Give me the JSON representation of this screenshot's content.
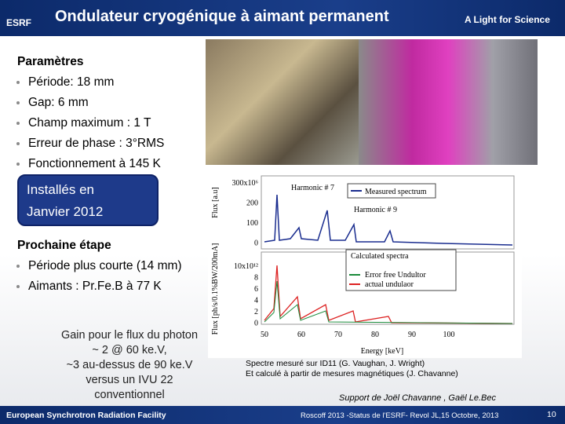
{
  "header": {
    "logo": "ESRF",
    "title": "Ondulateur cryogénique à aimant permanent",
    "tagline": "A Light for Science"
  },
  "params": {
    "heading": "Paramètres",
    "items": [
      "Période: 18 mm",
      "Gap: 6 mm",
      "Champ maximum : 1 T",
      "Erreur de phase : 3°RMS",
      "Fonctionnement à 145 K"
    ]
  },
  "installed": {
    "lines": [
      "Installés en",
      "Janvier  2012"
    ]
  },
  "next": {
    "heading": "Prochaine étape",
    "items": [
      "Période plus courte (14 mm)",
      "Aimants : Pr.Fe.B à 77 K"
    ]
  },
  "gain": {
    "lines": [
      "Gain pour le flux du photon",
      "~ 2 @ 60 ke.V,",
      "~3 au-dessus de 90 ke.V",
      "versus un IVU 22",
      "conventionnel"
    ]
  },
  "figure": {
    "top_ylabel": "Flux [a.u]",
    "top_yticks": [
      "300x10⁶",
      "200",
      "100",
      "0"
    ],
    "harmonic7": "Harmonic # 7",
    "harmonic9": "Harmonic # 9",
    "legend_top": "Measured spectrum",
    "bottom_ylabel": "Flux [ph/s/0.1%BW/200mA]",
    "bottom_yticks": [
      "10x10¹²",
      "8",
      "6",
      "4",
      "2",
      "0"
    ],
    "legend_title": "Calculated spectra",
    "legend_items": [
      "Error free Undultor",
      "actual undulaor"
    ],
    "xticks": [
      "50",
      "60",
      "70",
      "80",
      "90",
      "100"
    ],
    "xlabel": "Energy [keV]"
  },
  "caption": {
    "lines": [
      "Spectre mesuré sur ID11 (G. Vaughan, J. Wright)",
      "Et calculé à partir de mesures magnétiques (J. Chavanne)"
    ]
  },
  "support": "Support de Joël Chavanne , Gaël Le.Bec",
  "footer": {
    "org": "European Synchrotron Radiation Facility",
    "citation": "Roscoff 2013 -Status de l'ESRF-  Revol JL,15 Octobre, 2013",
    "page": "10"
  }
}
